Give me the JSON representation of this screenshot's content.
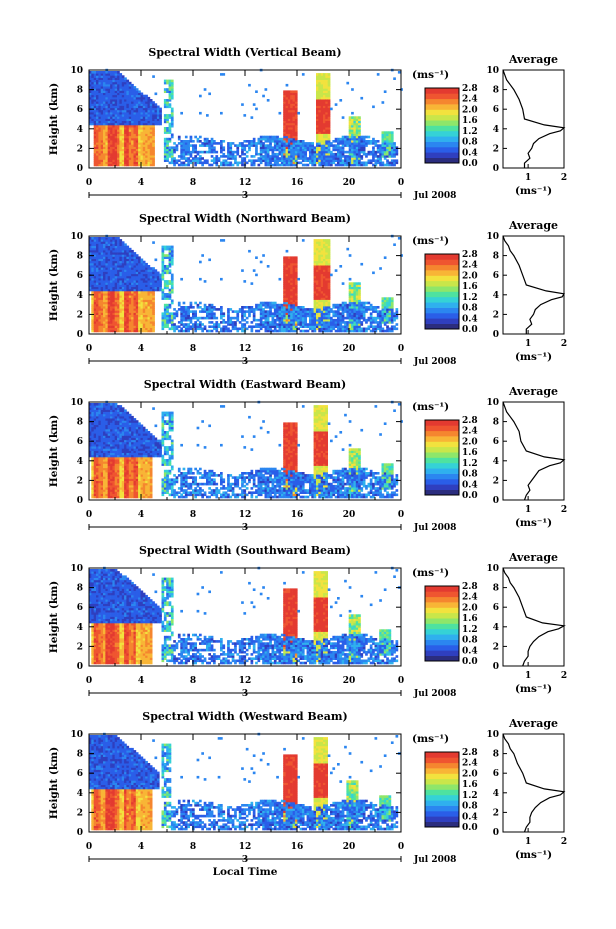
{
  "figure": {
    "xlabel": "Local Time",
    "date_label": "Jul 2008",
    "day_label": "3",
    "colorbar_unit": "(ms⁻¹)",
    "colorbar_ticks": [
      "2.8",
      "2.4",
      "2.0",
      "1.6",
      "1.2",
      "0.8",
      "0.4",
      "0.0"
    ],
    "colorbar_colors": [
      "#2b2d7e",
      "#2f3fbf",
      "#2a5ee8",
      "#2b86f0",
      "#2fb0ee",
      "#35d2d6",
      "#4ee2a0",
      "#8ee66a",
      "#c9e64a",
      "#f2e23e",
      "#f8b536",
      "#f5862f",
      "#ef5530",
      "#e33a30"
    ],
    "average_title": "Average",
    "average_xlabel": "(ms⁻¹)"
  },
  "chart_data": [
    {
      "type": "heatmap",
      "title": "Spectral Width (Vertical Beam)",
      "ylabel": "Height (km)",
      "xlabel": "Local Time",
      "x_ticks": [
        "0",
        "4",
        "8",
        "12",
        "16",
        "20",
        "0"
      ],
      "y_ticks": [
        "0",
        "2",
        "4",
        "6",
        "8",
        "10"
      ],
      "xlim": [
        0,
        24
      ],
      "ylim": [
        0,
        10
      ],
      "colorbar": {
        "label": "(ms⁻¹)",
        "range": [
          0,
          2.8
        ]
      },
      "profile": {
        "title": "Average",
        "x_ticks": [
          "1",
          "2"
        ],
        "y_ticks": [
          "0",
          "2",
          "4",
          "6",
          "8",
          "10"
        ],
        "xlim": [
          0.3,
          2
        ],
        "ylim": [
          0,
          10
        ],
        "height_km": [
          0,
          0.5,
          1,
          1.5,
          2,
          2.5,
          3,
          3.5,
          3.8,
          4.1,
          4.4,
          5,
          6,
          7,
          8,
          8.5,
          9,
          9.5,
          10
        ],
        "width_ms": [
          0.9,
          0.9,
          1.05,
          1.0,
          1.1,
          1.15,
          1.3,
          1.6,
          1.9,
          2.0,
          1.45,
          0.9,
          0.85,
          0.75,
          0.6,
          0.5,
          0.4,
          0.35,
          0.3
        ]
      }
    },
    {
      "type": "heatmap",
      "title": "Spectral Width (Northward Beam)",
      "ylabel": "Height (km)",
      "xlabel": "Local Time",
      "x_ticks": [
        "0",
        "4",
        "8",
        "12",
        "16",
        "20",
        "0"
      ],
      "y_ticks": [
        "0",
        "2",
        "4",
        "6",
        "8",
        "10"
      ],
      "xlim": [
        0,
        24
      ],
      "ylim": [
        0,
        10
      ],
      "colorbar": {
        "label": "(ms⁻¹)",
        "range": [
          0,
          2.8
        ]
      },
      "profile": {
        "title": "Average",
        "x_ticks": [
          "1",
          "2"
        ],
        "y_ticks": [
          "0",
          "2",
          "4",
          "6",
          "8",
          "10"
        ],
        "xlim": [
          0.3,
          2
        ],
        "ylim": [
          0,
          10
        ],
        "height_km": [
          0,
          0.5,
          1,
          1.5,
          2,
          2.5,
          3,
          3.5,
          3.8,
          4.1,
          4.4,
          5,
          6,
          7,
          8,
          8.5,
          9,
          9.5,
          10
        ],
        "width_ms": [
          0.95,
          0.95,
          1.1,
          1.05,
          1.15,
          1.2,
          1.35,
          1.65,
          1.95,
          2.0,
          1.5,
          0.95,
          0.85,
          0.75,
          0.6,
          0.5,
          0.45,
          0.35,
          0.3
        ]
      }
    },
    {
      "type": "heatmap",
      "title": "Spectral Width (Eastward Beam)",
      "ylabel": "Height (km)",
      "xlabel": "Local Time",
      "x_ticks": [
        "0",
        "4",
        "8",
        "12",
        "16",
        "20",
        "0"
      ],
      "y_ticks": [
        "0",
        "2",
        "4",
        "6",
        "8",
        "10"
      ],
      "xlim": [
        0,
        24
      ],
      "ylim": [
        0,
        10
      ],
      "colorbar": {
        "label": "(ms⁻¹)",
        "range": [
          0,
          2.8
        ]
      },
      "profile": {
        "title": "Average",
        "x_ticks": [
          "1",
          "2"
        ],
        "y_ticks": [
          "0",
          "2",
          "4",
          "6",
          "8",
          "10"
        ],
        "xlim": [
          0.3,
          2
        ],
        "ylim": [
          0,
          10
        ],
        "height_km": [
          0,
          0.5,
          1,
          1.5,
          2,
          2.5,
          3,
          3.5,
          3.8,
          4.1,
          4.4,
          5,
          6,
          7,
          8,
          8.5,
          9,
          9.5,
          10
        ],
        "width_ms": [
          0.9,
          0.95,
          1.05,
          1.0,
          1.1,
          1.2,
          1.3,
          1.6,
          1.9,
          2.0,
          1.45,
          0.95,
          0.8,
          0.75,
          0.6,
          0.5,
          0.4,
          0.35,
          0.3
        ]
      }
    },
    {
      "type": "heatmap",
      "title": "Spectral Width (Southward Beam)",
      "ylabel": "Height (km)",
      "xlabel": "Local Time",
      "x_ticks": [
        "0",
        "4",
        "8",
        "12",
        "16",
        "20",
        "0"
      ],
      "y_ticks": [
        "0",
        "2",
        "4",
        "6",
        "8",
        "10"
      ],
      "xlim": [
        0,
        24
      ],
      "ylim": [
        0,
        10
      ],
      "colorbar": {
        "label": "(ms⁻¹)",
        "range": [
          0,
          2.8
        ]
      },
      "profile": {
        "title": "Average",
        "x_ticks": [
          "1",
          "2"
        ],
        "y_ticks": [
          "0",
          "2",
          "4",
          "6",
          "8",
          "10"
        ],
        "xlim": [
          0.3,
          2
        ],
        "ylim": [
          0,
          10
        ],
        "height_km": [
          0,
          0.5,
          1,
          1.5,
          2,
          2.5,
          3,
          3.5,
          3.8,
          4.1,
          4.4,
          5,
          6,
          7,
          8,
          8.5,
          9,
          9.5,
          10
        ],
        "width_ms": [
          0.85,
          0.9,
          1.0,
          1.0,
          1.05,
          1.15,
          1.3,
          1.55,
          1.85,
          2.0,
          1.4,
          0.95,
          0.85,
          0.75,
          0.6,
          0.5,
          0.45,
          0.35,
          0.3
        ]
      }
    },
    {
      "type": "heatmap",
      "title": "Spectral Width (Westward Beam)",
      "ylabel": "Height (km)",
      "xlabel": "Local Time",
      "x_ticks": [
        "0",
        "4",
        "8",
        "12",
        "16",
        "20",
        "0"
      ],
      "y_ticks": [
        "0",
        "2",
        "4",
        "6",
        "8",
        "10"
      ],
      "xlim": [
        0,
        24
      ],
      "ylim": [
        0,
        10
      ],
      "colorbar": {
        "label": "(ms⁻¹)",
        "range": [
          0,
          2.8
        ]
      },
      "profile": {
        "title": "Average",
        "x_ticks": [
          "1",
          "2"
        ],
        "y_ticks": [
          "0",
          "2",
          "4",
          "6",
          "8",
          "10"
        ],
        "xlim": [
          0.3,
          2
        ],
        "ylim": [
          0,
          10
        ],
        "height_km": [
          0,
          0.5,
          1,
          1.5,
          2,
          2.5,
          3,
          3.5,
          3.8,
          4.1,
          4.4,
          5,
          6,
          7,
          8,
          8.5,
          9,
          9.5,
          10
        ],
        "width_ms": [
          0.9,
          0.95,
          1.05,
          1.05,
          1.1,
          1.2,
          1.35,
          1.6,
          1.9,
          2.0,
          1.45,
          0.95,
          0.85,
          0.7,
          0.6,
          0.5,
          0.45,
          0.35,
          0.3
        ]
      }
    }
  ]
}
